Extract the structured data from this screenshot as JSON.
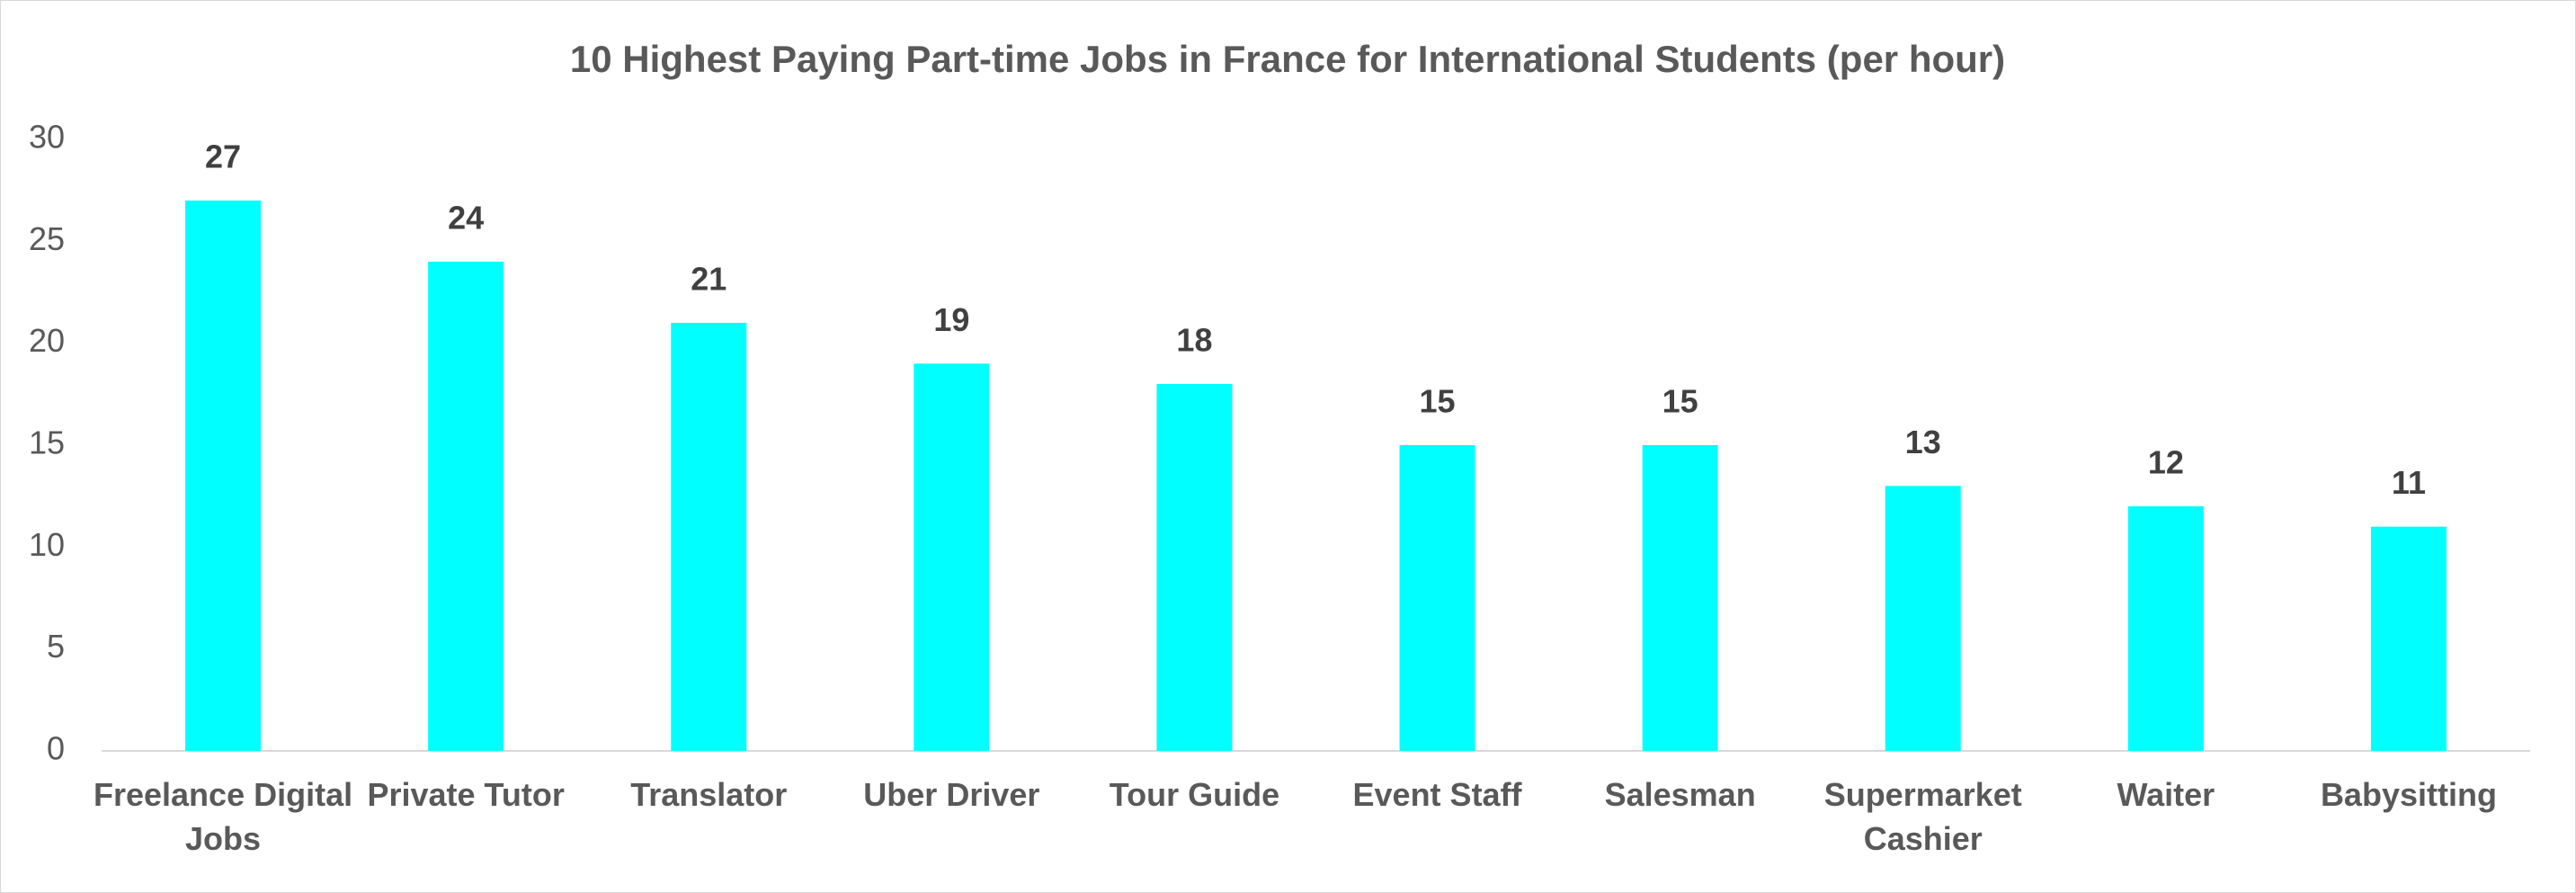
{
  "chart_data": {
    "type": "bar",
    "title": "10 Highest Paying Part-time Jobs in France for International Students (per hour)",
    "categories": [
      "Freelance Digital Jobs",
      "Private Tutor",
      "Translator",
      "Uber Driver",
      "Tour Guide",
      "Event Staff",
      "Salesman",
      "Supermarket Cashier",
      "Waiter",
      "Babysitting"
    ],
    "values": [
      27,
      24,
      21,
      19,
      18,
      15,
      15,
      13,
      12,
      11
    ],
    "color": "#00ffff",
    "ylim": [
      0,
      30
    ],
    "yticks": [
      0,
      5,
      10,
      15,
      20,
      25,
      30
    ],
    "grid": false
  }
}
